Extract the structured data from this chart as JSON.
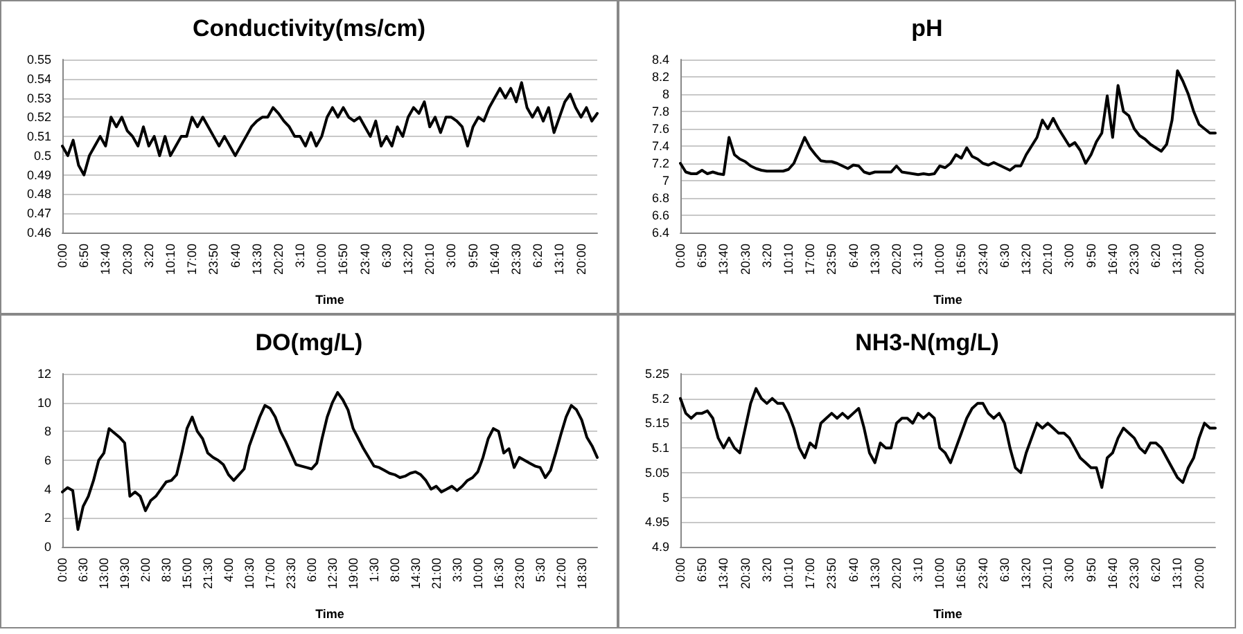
{
  "chart_data": [
    {
      "type": "line",
      "title": "Conductivity(ms/cm)",
      "xlabel": "Time",
      "color": "#000000",
      "grid": "y",
      "ylim": [
        0.46,
        0.55
      ],
      "yticks": [
        0.46,
        0.47,
        0.48,
        0.49,
        0.5,
        0.51,
        0.52,
        0.53,
        0.54,
        0.55
      ],
      "categories": [
        "0:00",
        null,
        null,
        null,
        "6:50",
        null,
        null,
        null,
        "13:40",
        null,
        null,
        null,
        "20:30",
        null,
        null,
        null,
        "3:20",
        null,
        null,
        null,
        "10:10",
        null,
        null,
        null,
        "17:00",
        null,
        null,
        null,
        "23:50",
        null,
        null,
        null,
        "6:40",
        null,
        null,
        null,
        "13:30",
        null,
        null,
        null,
        "20:20",
        null,
        null,
        null,
        "3:10",
        null,
        null,
        null,
        "10:00",
        null,
        null,
        null,
        "16:50",
        null,
        null,
        null,
        "23:40",
        null,
        null,
        null,
        "6:30",
        null,
        null,
        null,
        "13:20",
        null,
        null,
        null,
        "20:10",
        null,
        null,
        null,
        "3:00",
        null,
        null,
        null,
        "9:50",
        null,
        null,
        null,
        "16:40",
        null,
        null,
        null,
        "23:30",
        null,
        null,
        null,
        "6:20",
        null,
        null,
        null,
        "13:10",
        null,
        null,
        null,
        "20:00",
        null,
        null,
        null
      ],
      "values": [
        0.505,
        0.5,
        0.508,
        0.495,
        0.49,
        0.5,
        0.505,
        0.51,
        0.505,
        0.52,
        0.515,
        0.52,
        0.513,
        0.51,
        0.505,
        0.515,
        0.505,
        0.51,
        0.5,
        0.51,
        0.5,
        0.505,
        0.51,
        0.51,
        0.52,
        0.515,
        0.52,
        0.515,
        0.51,
        0.505,
        0.51,
        0.505,
        0.5,
        0.505,
        0.51,
        0.515,
        0.518,
        0.52,
        0.52,
        0.525,
        0.522,
        0.518,
        0.515,
        0.51,
        0.51,
        0.505,
        0.512,
        0.505,
        0.51,
        0.52,
        0.525,
        0.52,
        0.525,
        0.52,
        0.518,
        0.52,
        0.515,
        0.51,
        0.518,
        0.505,
        0.51,
        0.505,
        0.515,
        0.51,
        0.52,
        0.525,
        0.522,
        0.528,
        0.515,
        0.52,
        0.512,
        0.52,
        0.52,
        0.518,
        0.515,
        0.505,
        0.515,
        0.52,
        0.518,
        0.525,
        0.53,
        0.535,
        0.53,
        0.535,
        0.528,
        0.538,
        0.525,
        0.52,
        0.525,
        0.518,
        0.525,
        0.512,
        0.52,
        0.528,
        0.532,
        0.525,
        0.52,
        0.525,
        0.518,
        0.522
      ]
    },
    {
      "type": "line",
      "title": "pH",
      "xlabel": "Time",
      "color": "#000000",
      "grid": "y",
      "ylim": [
        6.4,
        8.4
      ],
      "yticks": [
        6.4,
        6.6,
        6.8,
        7,
        7.2,
        7.4,
        7.6,
        7.8,
        8,
        8.2,
        8.4
      ],
      "categories": [
        "0:00",
        null,
        null,
        null,
        "6:50",
        null,
        null,
        null,
        "13:40",
        null,
        null,
        null,
        "20:30",
        null,
        null,
        null,
        "3:20",
        null,
        null,
        null,
        "10:10",
        null,
        null,
        null,
        "17:00",
        null,
        null,
        null,
        "23:50",
        null,
        null,
        null,
        "6:40",
        null,
        null,
        null,
        "13:30",
        null,
        null,
        null,
        "20:20",
        null,
        null,
        null,
        "3:10",
        null,
        null,
        null,
        "10:00",
        null,
        null,
        null,
        "16:50",
        null,
        null,
        null,
        "23:40",
        null,
        null,
        null,
        "6:30",
        null,
        null,
        null,
        "13:20",
        null,
        null,
        null,
        "20:10",
        null,
        null,
        null,
        "3:00",
        null,
        null,
        null,
        "9:50",
        null,
        null,
        null,
        "16:40",
        null,
        null,
        null,
        "23:30",
        null,
        null,
        null,
        "6:20",
        null,
        null,
        null,
        "13:10",
        null,
        null,
        null,
        "20:00",
        null,
        null,
        null
      ],
      "values": [
        7.2,
        7.1,
        7.08,
        7.08,
        7.12,
        7.08,
        7.1,
        7.08,
        7.07,
        7.5,
        7.3,
        7.25,
        7.22,
        7.17,
        7.14,
        7.12,
        7.11,
        7.11,
        7.11,
        7.11,
        7.13,
        7.2,
        7.35,
        7.5,
        7.38,
        7.3,
        7.23,
        7.22,
        7.22,
        7.2,
        7.17,
        7.14,
        7.18,
        7.17,
        7.1,
        7.08,
        7.1,
        7.1,
        7.1,
        7.1,
        7.17,
        7.1,
        7.09,
        7.08,
        7.07,
        7.08,
        7.07,
        7.08,
        7.17,
        7.15,
        7.2,
        7.3,
        7.26,
        7.38,
        7.28,
        7.25,
        7.2,
        7.18,
        7.21,
        7.18,
        7.15,
        7.12,
        7.17,
        7.17,
        7.3,
        7.4,
        7.5,
        7.7,
        7.6,
        7.72,
        7.6,
        7.5,
        7.4,
        7.44,
        7.35,
        7.2,
        7.3,
        7.45,
        7.55,
        7.98,
        7.5,
        8.1,
        7.8,
        7.75,
        7.6,
        7.52,
        7.48,
        7.42,
        7.38,
        7.34,
        7.42,
        7.7,
        8.27,
        8.15,
        8,
        7.8,
        7.65,
        7.6,
        7.55,
        7.55
      ]
    },
    {
      "type": "line",
      "title": "DO(mg/L)",
      "xlabel": "Time",
      "color": "#000000",
      "grid": "y",
      "ylim": [
        0,
        12
      ],
      "yticks": [
        0,
        2,
        4,
        6,
        8,
        10,
        12
      ],
      "categories": [
        "0:00",
        null,
        null,
        null,
        "6:30",
        null,
        null,
        null,
        "13:00",
        null,
        null,
        null,
        "19:30",
        null,
        null,
        null,
        "2:00",
        null,
        null,
        null,
        "8:30",
        null,
        null,
        null,
        "15:00",
        null,
        null,
        null,
        "21:30",
        null,
        null,
        null,
        "4:00",
        null,
        null,
        null,
        "10:30",
        null,
        null,
        null,
        "17:00",
        null,
        null,
        null,
        "23:30",
        null,
        null,
        null,
        "6:00",
        null,
        null,
        null,
        "12:30",
        null,
        null,
        null,
        "19:00",
        null,
        null,
        null,
        "1:30",
        null,
        null,
        null,
        "8:00",
        null,
        null,
        null,
        "14:30",
        null,
        null,
        null,
        "21:00",
        null,
        null,
        null,
        "3:30",
        null,
        null,
        null,
        "10:00",
        null,
        null,
        null,
        "16:30",
        null,
        null,
        null,
        "23:00",
        null,
        null,
        null,
        "5:30",
        null,
        null,
        null,
        "12:00",
        null,
        null,
        null,
        "18:30",
        null,
        null,
        null
      ],
      "values": [
        3.8,
        4.1,
        3.9,
        1.2,
        2.8,
        3.5,
        4.6,
        6,
        6.5,
        8.2,
        7.9,
        7.6,
        7.2,
        3.5,
        3.8,
        3.5,
        2.5,
        3.2,
        3.5,
        4,
        4.5,
        4.6,
        5,
        6.5,
        8.2,
        9,
        8,
        7.5,
        6.5,
        6.2,
        6,
        5.7,
        5,
        4.6,
        5,
        5.4,
        7,
        8,
        9,
        9.8,
        9.6,
        9,
        8,
        7.3,
        6.5,
        5.7,
        5.6,
        5.5,
        5.4,
        5.8,
        7.5,
        9,
        10,
        10.7,
        10.2,
        9.5,
        8.2,
        7.5,
        6.8,
        6.2,
        5.6,
        5.5,
        5.3,
        5.1,
        5,
        4.8,
        4.9,
        5.1,
        5.2,
        5,
        4.6,
        4,
        4.2,
        3.8,
        4,
        4.2,
        3.9,
        4.2,
        4.6,
        4.8,
        5.2,
        6.2,
        7.5,
        8.2,
        8,
        6.5,
        6.8,
        5.5,
        6.2,
        6,
        5.8,
        5.6,
        5.5,
        4.8,
        5.3,
        6.5,
        7.8,
        9,
        9.8,
        9.5,
        8.8,
        7.6,
        7,
        6.2
      ]
    },
    {
      "type": "line",
      "title": "NH3-N(mg/L)",
      "xlabel": "Time",
      "color": "#000000",
      "grid": "y",
      "ylim": [
        4.9,
        5.25
      ],
      "yticks": [
        4.9,
        4.95,
        5,
        5.05,
        5.1,
        5.15,
        5.2,
        5.25
      ],
      "categories": [
        "0:00",
        null,
        null,
        null,
        "6:50",
        null,
        null,
        null,
        "13:40",
        null,
        null,
        null,
        "20:30",
        null,
        null,
        null,
        "3:20",
        null,
        null,
        null,
        "10:10",
        null,
        null,
        null,
        "17:00",
        null,
        null,
        null,
        "23:50",
        null,
        null,
        null,
        "6:40",
        null,
        null,
        null,
        "13:30",
        null,
        null,
        null,
        "20:20",
        null,
        null,
        null,
        "3:10",
        null,
        null,
        null,
        "10:00",
        null,
        null,
        null,
        "16:50",
        null,
        null,
        null,
        "23:40",
        null,
        null,
        null,
        "6:30",
        null,
        null,
        null,
        "13:20",
        null,
        null,
        null,
        "20:10",
        null,
        null,
        null,
        "3:00",
        null,
        null,
        null,
        "9:50",
        null,
        null,
        null,
        "16:40",
        null,
        null,
        null,
        "23:30",
        null,
        null,
        null,
        "6:20",
        null,
        null,
        null,
        "13:10",
        null,
        null,
        null,
        "20:00",
        null,
        null,
        null
      ],
      "values": [
        5.2,
        5.17,
        5.16,
        5.17,
        5.17,
        5.175,
        5.16,
        5.12,
        5.1,
        5.12,
        5.1,
        5.09,
        5.14,
        5.19,
        5.22,
        5.2,
        5.19,
        5.2,
        5.19,
        5.19,
        5.17,
        5.14,
        5.1,
        5.08,
        5.11,
        5.1,
        5.15,
        5.16,
        5.17,
        5.16,
        5.17,
        5.16,
        5.17,
        5.18,
        5.14,
        5.09,
        5.07,
        5.11,
        5.1,
        5.1,
        5.15,
        5.16,
        5.16,
        5.15,
        5.17,
        5.16,
        5.17,
        5.16,
        5.1,
        5.09,
        5.07,
        5.1,
        5.13,
        5.16,
        5.18,
        5.19,
        5.19,
        5.17,
        5.16,
        5.17,
        5.15,
        5.1,
        5.06,
        5.05,
        5.09,
        5.12,
        5.15,
        5.14,
        5.15,
        5.14,
        5.13,
        5.13,
        5.12,
        5.1,
        5.08,
        5.07,
        5.06,
        5.06,
        5.02,
        5.08,
        5.09,
        5.12,
        5.14,
        5.13,
        5.12,
        5.1,
        5.09,
        5.11,
        5.11,
        5.1,
        5.08,
        5.06,
        5.04,
        5.03,
        5.06,
        5.08,
        5.12,
        5.15,
        5.14,
        5.14
      ]
    }
  ]
}
